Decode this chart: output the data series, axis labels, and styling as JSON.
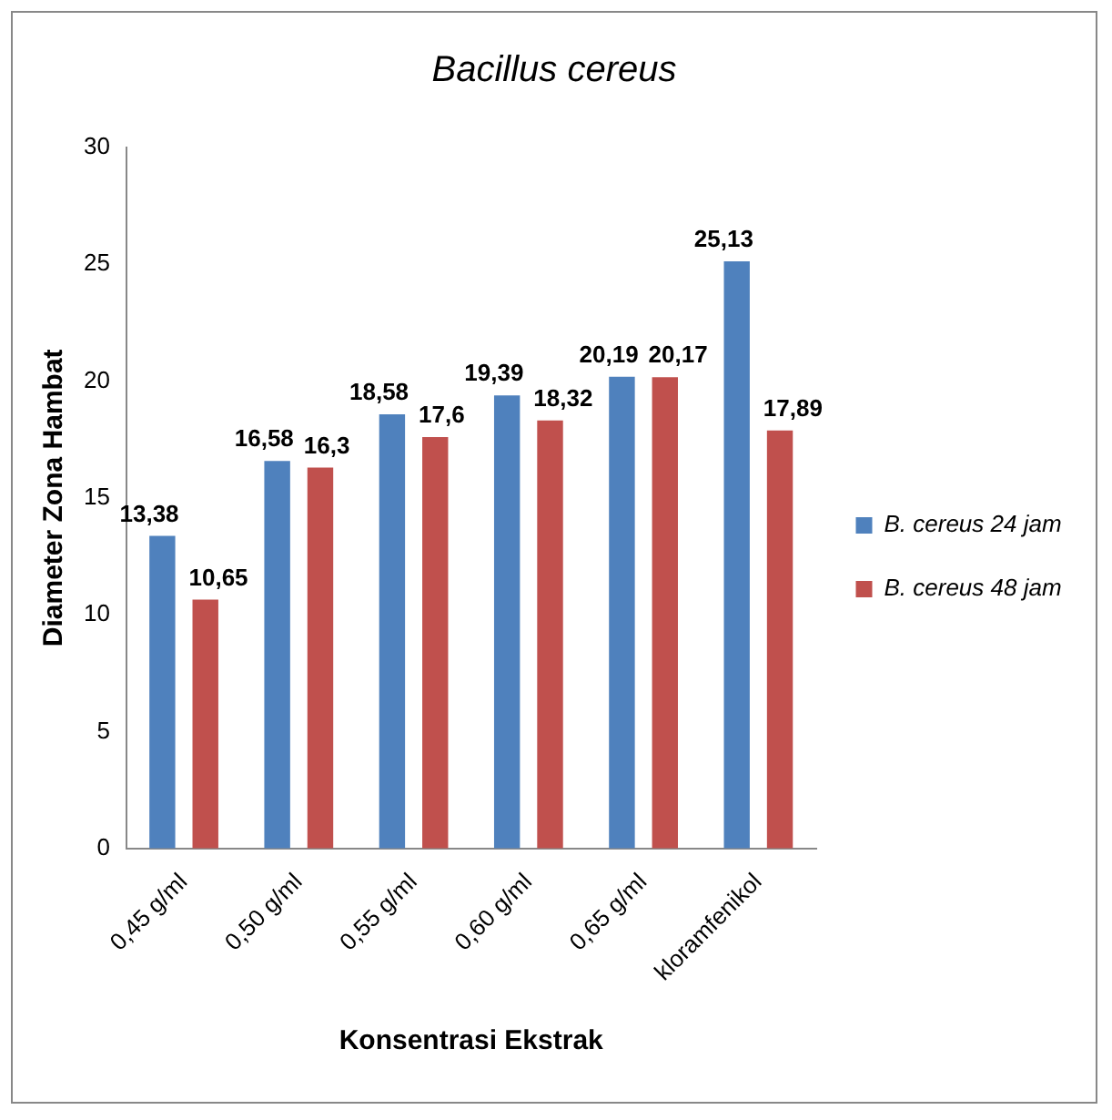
{
  "chart_data": {
    "type": "bar",
    "title": "Bacillus cereus",
    "xlabel": "Konsentrasi Ekstrak",
    "ylabel": "Diameter Zona Hambat",
    "categories": [
      "0,45 g/ml",
      "0,50 g/ml",
      "0,55 g/ml",
      "0,60 g/ml",
      "0,65 g/ml",
      "kloramfenikol"
    ],
    "series": [
      {
        "name": "B. cereus 24 jam",
        "color": "#4f81bd",
        "values": [
          13.38,
          16.58,
          18.58,
          19.39,
          20.19,
          25.13
        ],
        "value_labels": [
          "13,38",
          "16,58",
          "18,58",
          "19,39",
          "20,19",
          "25,13"
        ]
      },
      {
        "name": "B. cereus 48 jam",
        "color": "#c0504d",
        "values": [
          10.65,
          16.3,
          17.6,
          18.32,
          20.17,
          17.89
        ],
        "value_labels": [
          "10,65",
          "16,3",
          "17,6",
          "18,32",
          "20,17",
          "17,89"
        ]
      }
    ],
    "ylim": [
      0,
      30
    ],
    "yticks": [
      0,
      5,
      10,
      15,
      20,
      25,
      30
    ],
    "grid": false,
    "legend": "right"
  }
}
